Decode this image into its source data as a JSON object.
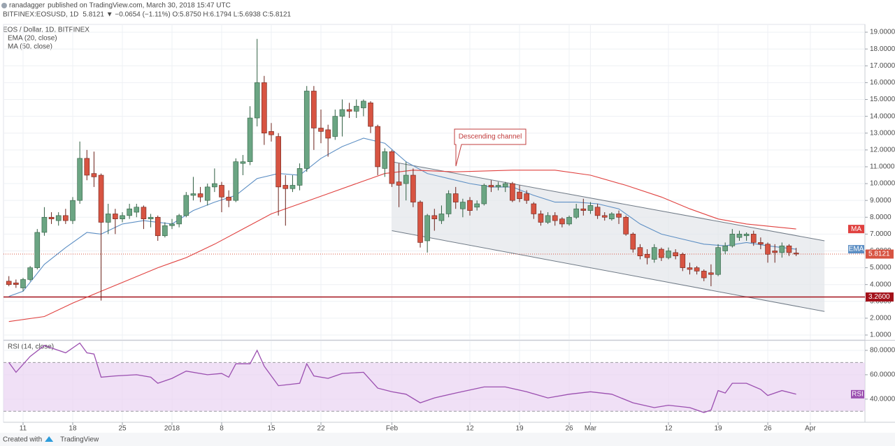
{
  "header": {
    "author": "ranadagger",
    "published": "published on TradingView.com, March 30, 2018 15:47 UTC",
    "symbol": "BITFINEX:EOSUSD, 1D",
    "quote": "5.8121 ▼ −0.0654 (−1.11%) O:5.8750 H:6.1794 L:5.6938 C:5.8121"
  },
  "footer": {
    "created": "Created with",
    "brand": "TradingView"
  },
  "chart_data": [
    {
      "type": "candlestick",
      "title": "EOS / Dollar, 1D, BITFINEX",
      "up_color": "#6ba583",
      "down_color": "#d75442",
      "x": [
        9,
        10,
        11,
        12,
        13,
        14,
        15,
        16,
        17,
        18,
        19,
        20,
        21,
        22,
        23,
        24,
        25,
        26,
        27,
        28,
        29,
        30,
        31,
        32,
        33,
        34,
        35,
        36,
        37,
        38,
        39,
        40,
        41,
        42,
        43,
        44,
        45,
        46,
        47,
        48,
        49,
        50,
        51,
        52,
        53,
        54,
        55,
        56,
        57,
        58,
        59,
        60,
        61,
        62,
        63,
        64,
        65,
        66,
        67,
        68,
        69,
        70,
        71,
        72,
        73,
        74,
        75,
        76,
        77,
        78,
        79,
        80,
        81,
        82,
        83,
        84,
        85,
        86,
        87,
        88,
        89,
        90,
        91,
        92,
        93,
        94,
        95,
        96,
        97,
        98,
        99,
        100,
        101,
        102,
        103,
        104,
        105,
        106,
        107,
        108,
        109,
        110,
        111,
        112,
        113,
        114,
        115,
        116,
        117,
        118,
        119,
        120
      ],
      "open": [
        4.2,
        4.1,
        3.8,
        4.3,
        5.0,
        7.1,
        8.0,
        7.8,
        8.1,
        7.8,
        9.0,
        11.5,
        10.6,
        10.5,
        7.7,
        8.2,
        7.9,
        8.1,
        8.3,
        8.6,
        7.9,
        8.0,
        6.9,
        7.5,
        7.6,
        8.1,
        9.3,
        9.4,
        9.0,
        9.8,
        9.9,
        9.2,
        9.0,
        11.2,
        11.3,
        13.9,
        16.0,
        13.1,
        12.8,
        9.9,
        9.7,
        9.9,
        10.9,
        15.5,
        13.3,
        13.2,
        12.8,
        14.0,
        14.4,
        14.3,
        14.5,
        14.8,
        13.4,
        10.9,
        11.9,
        10.1,
        10.0,
        10.5,
        8.9,
        6.6,
        8.1,
        7.8,
        8.2,
        9.4,
        8.5,
        9.0,
        8.6,
        8.8,
        9.9,
        9.8,
        9.8,
        10.0,
        9.5,
        9.4,
        8.8,
        8.2,
        7.7,
        8.1,
        7.9,
        7.6,
        8.0,
        8.5,
        8.4,
        8.6,
        8.1,
        7.9,
        8.2,
        8.0,
        7.0,
        6.2,
        5.8,
        5.5,
        6.1,
        5.6,
        5.9,
        5.8,
        5.0,
        5.0,
        4.8,
        4.7,
        4.6,
        6.0,
        6.3,
        6.8,
        6.9,
        7.0,
        6.5,
        6.4,
        6.0,
        5.9,
        6.3,
        5.875
      ],
      "high": [
        4.5,
        4.3,
        4.4,
        5.1,
        7.3,
        8.6,
        8.3,
        8.3,
        8.5,
        9.2,
        12.5,
        12.0,
        11.9,
        10.6,
        8.8,
        8.5,
        8.3,
        8.8,
        8.8,
        8.7,
        8.2,
        8.1,
        7.7,
        7.9,
        8.2,
        9.5,
        10.4,
        9.8,
        10.0,
        10.9,
        10.1,
        9.6,
        11.5,
        11.7,
        14.6,
        18.6,
        16.4,
        13.6,
        13.0,
        10.5,
        10.5,
        11.2,
        15.8,
        15.8,
        14.4,
        13.5,
        14.4,
        15.0,
        14.8,
        15.0,
        15.0,
        14.9,
        13.5,
        12.1,
        12.0,
        11.2,
        11.3,
        10.9,
        9.0,
        8.2,
        8.5,
        8.7,
        9.6,
        9.8,
        9.1,
        9.2,
        9.0,
        10.0,
        10.2,
        10.1,
        10.1,
        10.1,
        9.9,
        9.6,
        8.9,
        8.4,
        8.3,
        8.3,
        8.0,
        8.1,
        8.8,
        9.1,
        8.9,
        8.8,
        8.3,
        8.3,
        8.4,
        8.1,
        7.1,
        6.4,
        6.1,
        6.4,
        6.2,
        6.2,
        6.1,
        5.9,
        5.3,
        5.1,
        4.9,
        5.2,
        6.4,
        6.5,
        7.3,
        7.2,
        7.1,
        7.2,
        6.8,
        6.5,
        6.4,
        6.5,
        6.4,
        6.1794
      ],
      "low": [
        3.9,
        3.8,
        3.6,
        4.2,
        4.9,
        6.9,
        7.6,
        7.5,
        7.6,
        7.6,
        8.8,
        10.2,
        9.8,
        3.05,
        7.0,
        7.0,
        7.7,
        7.9,
        8.0,
        7.3,
        7.4,
        6.6,
        6.8,
        7.3,
        7.4,
        8.0,
        9.0,
        8.9,
        8.7,
        9.5,
        8.3,
        8.6,
        8.9,
        10.5,
        11.1,
        13.4,
        12.3,
        12.5,
        8.1,
        7.5,
        9.5,
        9.6,
        10.7,
        12.0,
        12.4,
        11.6,
        12.6,
        12.8,
        13.9,
        13.9,
        14.0,
        13.0,
        10.5,
        10.4,
        9.8,
        8.6,
        9.0,
        8.6,
        6.2,
        5.9,
        7.2,
        7.6,
        8.0,
        8.5,
        8.0,
        8.1,
        8.4,
        8.7,
        9.5,
        9.6,
        9.5,
        8.9,
        8.9,
        8.8,
        7.9,
        7.5,
        7.6,
        7.5,
        7.4,
        7.5,
        7.9,
        8.1,
        8.2,
        7.9,
        7.8,
        7.8,
        7.6,
        6.9,
        5.9,
        5.5,
        5.2,
        5.3,
        5.4,
        5.5,
        5.5,
        4.8,
        4.6,
        4.6,
        4.2,
        3.9,
        4.5,
        5.8,
        6.2,
        6.6,
        6.6,
        6.3,
        6.1,
        5.3,
        5.3,
        5.6,
        5.7,
        5.6938
      ],
      "close": [
        4.0,
        4.0,
        4.3,
        5.0,
        7.1,
        8.0,
        7.9,
        8.1,
        7.8,
        9.0,
        11.5,
        10.5,
        10.4,
        7.7,
        8.2,
        7.9,
        8.1,
        8.5,
        8.6,
        7.9,
        8.0,
        6.9,
        7.5,
        7.6,
        8.1,
        9.3,
        9.4,
        9.2,
        9.8,
        10.0,
        9.2,
        9.0,
        11.3,
        11.3,
        13.9,
        16.0,
        13.0,
        12.9,
        9.8,
        9.7,
        9.9,
        10.9,
        15.5,
        13.3,
        13.1,
        12.7,
        14.0,
        14.4,
        14.3,
        14.6,
        14.9,
        13.4,
        11.0,
        11.9,
        10.0,
        9.9,
        10.5,
        8.9,
        6.5,
        8.1,
        7.9,
        8.2,
        9.4,
        8.9,
        8.9,
        8.4,
        8.8,
        9.9,
        9.8,
        9.9,
        10.0,
        9.0,
        9.1,
        9.0,
        8.2,
        7.7,
        8.1,
        7.8,
        7.6,
        8.0,
        8.5,
        8.4,
        8.7,
        8.1,
        8.0,
        8.2,
        8.0,
        7.0,
        6.1,
        5.7,
        5.6,
        6.2,
        5.6,
        6.0,
        5.7,
        5.0,
        4.9,
        4.8,
        4.4,
        4.6,
        6.2,
        6.3,
        7.0,
        7.0,
        7.0,
        6.5,
        6.4,
        5.8,
        5.9,
        6.3,
        5.9,
        5.8121
      ],
      "overlays": [
        {
          "name": "EMA (20, close)",
          "label": "EMA",
          "color": "#5d8fc4",
          "x": [
            9,
            11,
            14,
            17,
            20,
            22,
            25,
            28,
            32,
            35,
            38,
            41,
            44,
            47,
            50,
            53,
            56,
            59,
            62,
            65,
            68,
            71,
            74,
            77,
            80,
            83,
            86,
            89,
            92,
            95,
            98,
            101,
            104,
            107,
            110,
            113,
            116,
            120
          ],
          "values": [
            3.3,
            3.6,
            5.2,
            6.2,
            7.1,
            7.0,
            7.6,
            7.8,
            7.6,
            8.4,
            8.9,
            9.3,
            10.3,
            10.6,
            10.5,
            11.5,
            12.2,
            12.7,
            12.4,
            11.3,
            10.6,
            10.3,
            10.0,
            9.8,
            9.8,
            9.3,
            8.9,
            8.9,
            8.8,
            8.5,
            7.6,
            7.0,
            6.7,
            6.4,
            6.3,
            6.5,
            6.3,
            6.1
          ]
        },
        {
          "name": "MA (50, close)",
          "label": "MA",
          "color": "#e0413f",
          "x": [
            9,
            14,
            18,
            22,
            26,
            30,
            34,
            38,
            42,
            46,
            50,
            54,
            58,
            62,
            66,
            72,
            80,
            86,
            91,
            96,
            101,
            105,
            109,
            113,
            120
          ],
          "values": [
            1.8,
            2.1,
            2.9,
            3.6,
            4.3,
            5.0,
            5.6,
            6.4,
            7.3,
            8.2,
            8.8,
            9.4,
            10.0,
            10.6,
            10.8,
            10.7,
            10.8,
            10.8,
            10.5,
            9.9,
            9.2,
            8.5,
            7.9,
            7.6,
            7.3
          ]
        }
      ],
      "hlines": [
        {
          "value": 3.26,
          "label": "3.2600",
          "color": "#a3111a",
          "style": "solid"
        },
        {
          "value": 5.8121,
          "label": "5.8121",
          "color": "#d75442",
          "style": "dotted"
        }
      ],
      "channel": {
        "color": "#6f7a86",
        "fill": "#e3e6ea",
        "upper": {
          "x": [
            63,
            124
          ],
          "values": [
            11.3,
            6.6
          ]
        },
        "lower": {
          "x": [
            63,
            124
          ],
          "values": [
            7.2,
            2.4
          ]
        }
      },
      "annotation": "Descending channel",
      "xlim": [
        8.24,
        129.7
      ],
      "xticks": [
        {
          "value": 11,
          "label": "11"
        },
        {
          "value": 18,
          "label": "18"
        },
        {
          "value": 25,
          "label": "25"
        },
        {
          "value": 32,
          "label": "2018"
        },
        {
          "value": 39,
          "label": "8"
        },
        {
          "value": 46,
          "label": "15"
        },
        {
          "value": 53,
          "label": "22"
        },
        {
          "value": 63,
          "label": "Feb"
        },
        {
          "value": 74,
          "label": "12"
        },
        {
          "value": 81,
          "label": "19"
        },
        {
          "value": 88,
          "label": "26"
        },
        {
          "value": 91,
          "label": "Mar"
        },
        {
          "value": 102,
          "label": "12"
        },
        {
          "value": 109,
          "label": "19"
        },
        {
          "value": 116,
          "label": "26"
        },
        {
          "value": 122,
          "label": "Apr"
        }
      ],
      "ylim": [
        0.71,
        19.46
      ],
      "yticks": [
        {
          "value": 1,
          "label": "1.0000"
        },
        {
          "value": 2,
          "label": "2.0000"
        },
        {
          "value": 3,
          "label": "3.0000"
        },
        {
          "value": 4,
          "label": "4.0000"
        },
        {
          "value": 5,
          "label": "5.0000"
        },
        {
          "value": 6,
          "label": "6.0000"
        },
        {
          "value": 7,
          "label": "7.0000"
        },
        {
          "value": 8,
          "label": "8.0000"
        },
        {
          "value": 9,
          "label": "9.0000"
        },
        {
          "value": 10,
          "label": "10.0000"
        },
        {
          "value": 11,
          "label": "11.0000"
        },
        {
          "value": 12,
          "label": "12.0000"
        },
        {
          "value": 13,
          "label": "13.0000"
        },
        {
          "value": 14,
          "label": "14.0000"
        },
        {
          "value": 15,
          "label": "15.0000"
        },
        {
          "value": 16,
          "label": "16.0000"
        },
        {
          "value": 17,
          "label": "17.0000"
        },
        {
          "value": 18,
          "label": "18.0000"
        },
        {
          "value": 19,
          "label": "19.0000"
        }
      ],
      "grid": true
    },
    {
      "type": "line",
      "title": "RSI (14, close)",
      "label": "RSI",
      "color": "#9b4fb0",
      "band_color": "#e9d3f2",
      "x": [
        9,
        10,
        12,
        14,
        17,
        19,
        20,
        21,
        22,
        24,
        27,
        29,
        30,
        32,
        34,
        37,
        39,
        40,
        41,
        43,
        44,
        45,
        47,
        50,
        51,
        52,
        54,
        56,
        59,
        61,
        63,
        65,
        67,
        69,
        72,
        76,
        79,
        82,
        85,
        88,
        91,
        94,
        97,
        100,
        102,
        105,
        107,
        108,
        109,
        110,
        111,
        113,
        115,
        116,
        118,
        120
      ],
      "values": [
        70,
        62,
        75,
        84,
        78,
        86,
        78,
        77,
        58,
        59,
        60,
        58,
        53,
        57,
        63,
        60,
        61,
        58,
        69,
        69,
        80,
        67,
        51,
        53,
        69,
        59,
        57,
        61,
        62,
        49,
        46,
        44,
        37,
        41,
        45,
        50,
        50,
        46,
        41,
        44,
        46,
        44,
        37,
        33,
        35,
        33,
        29,
        31,
        47,
        45,
        53,
        53,
        48,
        43,
        47,
        44
      ],
      "levels": [
        30,
        70
      ],
      "ylim": [
        21,
        88
      ],
      "yticks": [
        {
          "value": 40,
          "label": "40.0000"
        },
        {
          "value": 60,
          "label": "60.0000"
        },
        {
          "value": 80,
          "label": "80.0000"
        }
      ],
      "grid": true
    }
  ]
}
